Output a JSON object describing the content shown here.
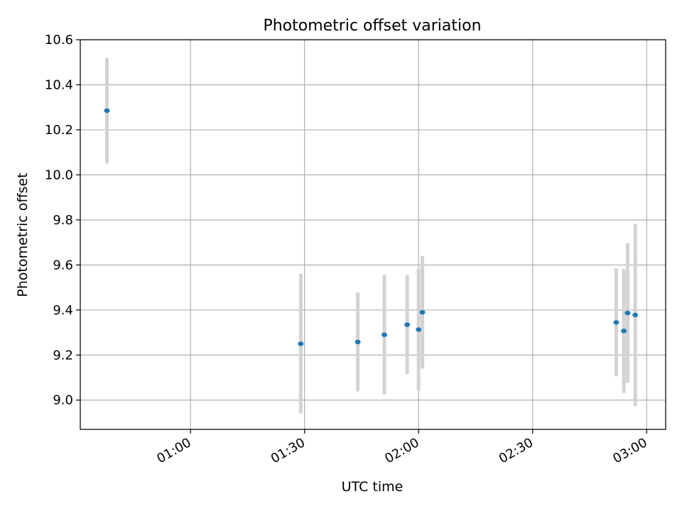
{
  "chart_data": {
    "type": "scatter",
    "title": "Photometric offset variation",
    "xlabel": "UTC time",
    "ylabel": "Photometric offset",
    "x_unit": "UTC time (HH:MM)",
    "xlim": [
      "00:31",
      "03:05"
    ],
    "ylim": [
      8.87,
      10.6
    ],
    "x_ticks": [
      "01:00",
      "01:30",
      "02:00",
      "02:30",
      "03:00"
    ],
    "y_ticks": [
      "9.0",
      "9.2",
      "9.4",
      "9.6",
      "9.8",
      "10.0",
      "10.2",
      "10.4",
      "10.6"
    ],
    "grid": true,
    "marker_color": "#1f77b4",
    "errorbar_color": "#d3d3d3",
    "points": [
      {
        "time": "00:38",
        "y": 10.285,
        "yerr": 0.235
      },
      {
        "time": "01:29",
        "y": 9.25,
        "yerr": 0.31
      },
      {
        "time": "01:44",
        "y": 9.258,
        "yerr": 0.22
      },
      {
        "time": "01:51",
        "y": 9.29,
        "yerr": 0.265
      },
      {
        "time": "01:57",
        "y": 9.335,
        "yerr": 0.22
      },
      {
        "time": "02:00",
        "y": 9.313,
        "yerr": 0.27
      },
      {
        "time": "02:01",
        "y": 9.39,
        "yerr": 0.25
      },
      {
        "time": "02:52",
        "y": 9.345,
        "yerr": 0.24
      },
      {
        "time": "02:54",
        "y": 9.307,
        "yerr": 0.275
      },
      {
        "time": "02:55",
        "y": 9.387,
        "yerr": 0.31
      },
      {
        "time": "02:57",
        "y": 9.378,
        "yerr": 0.405
      }
    ]
  }
}
